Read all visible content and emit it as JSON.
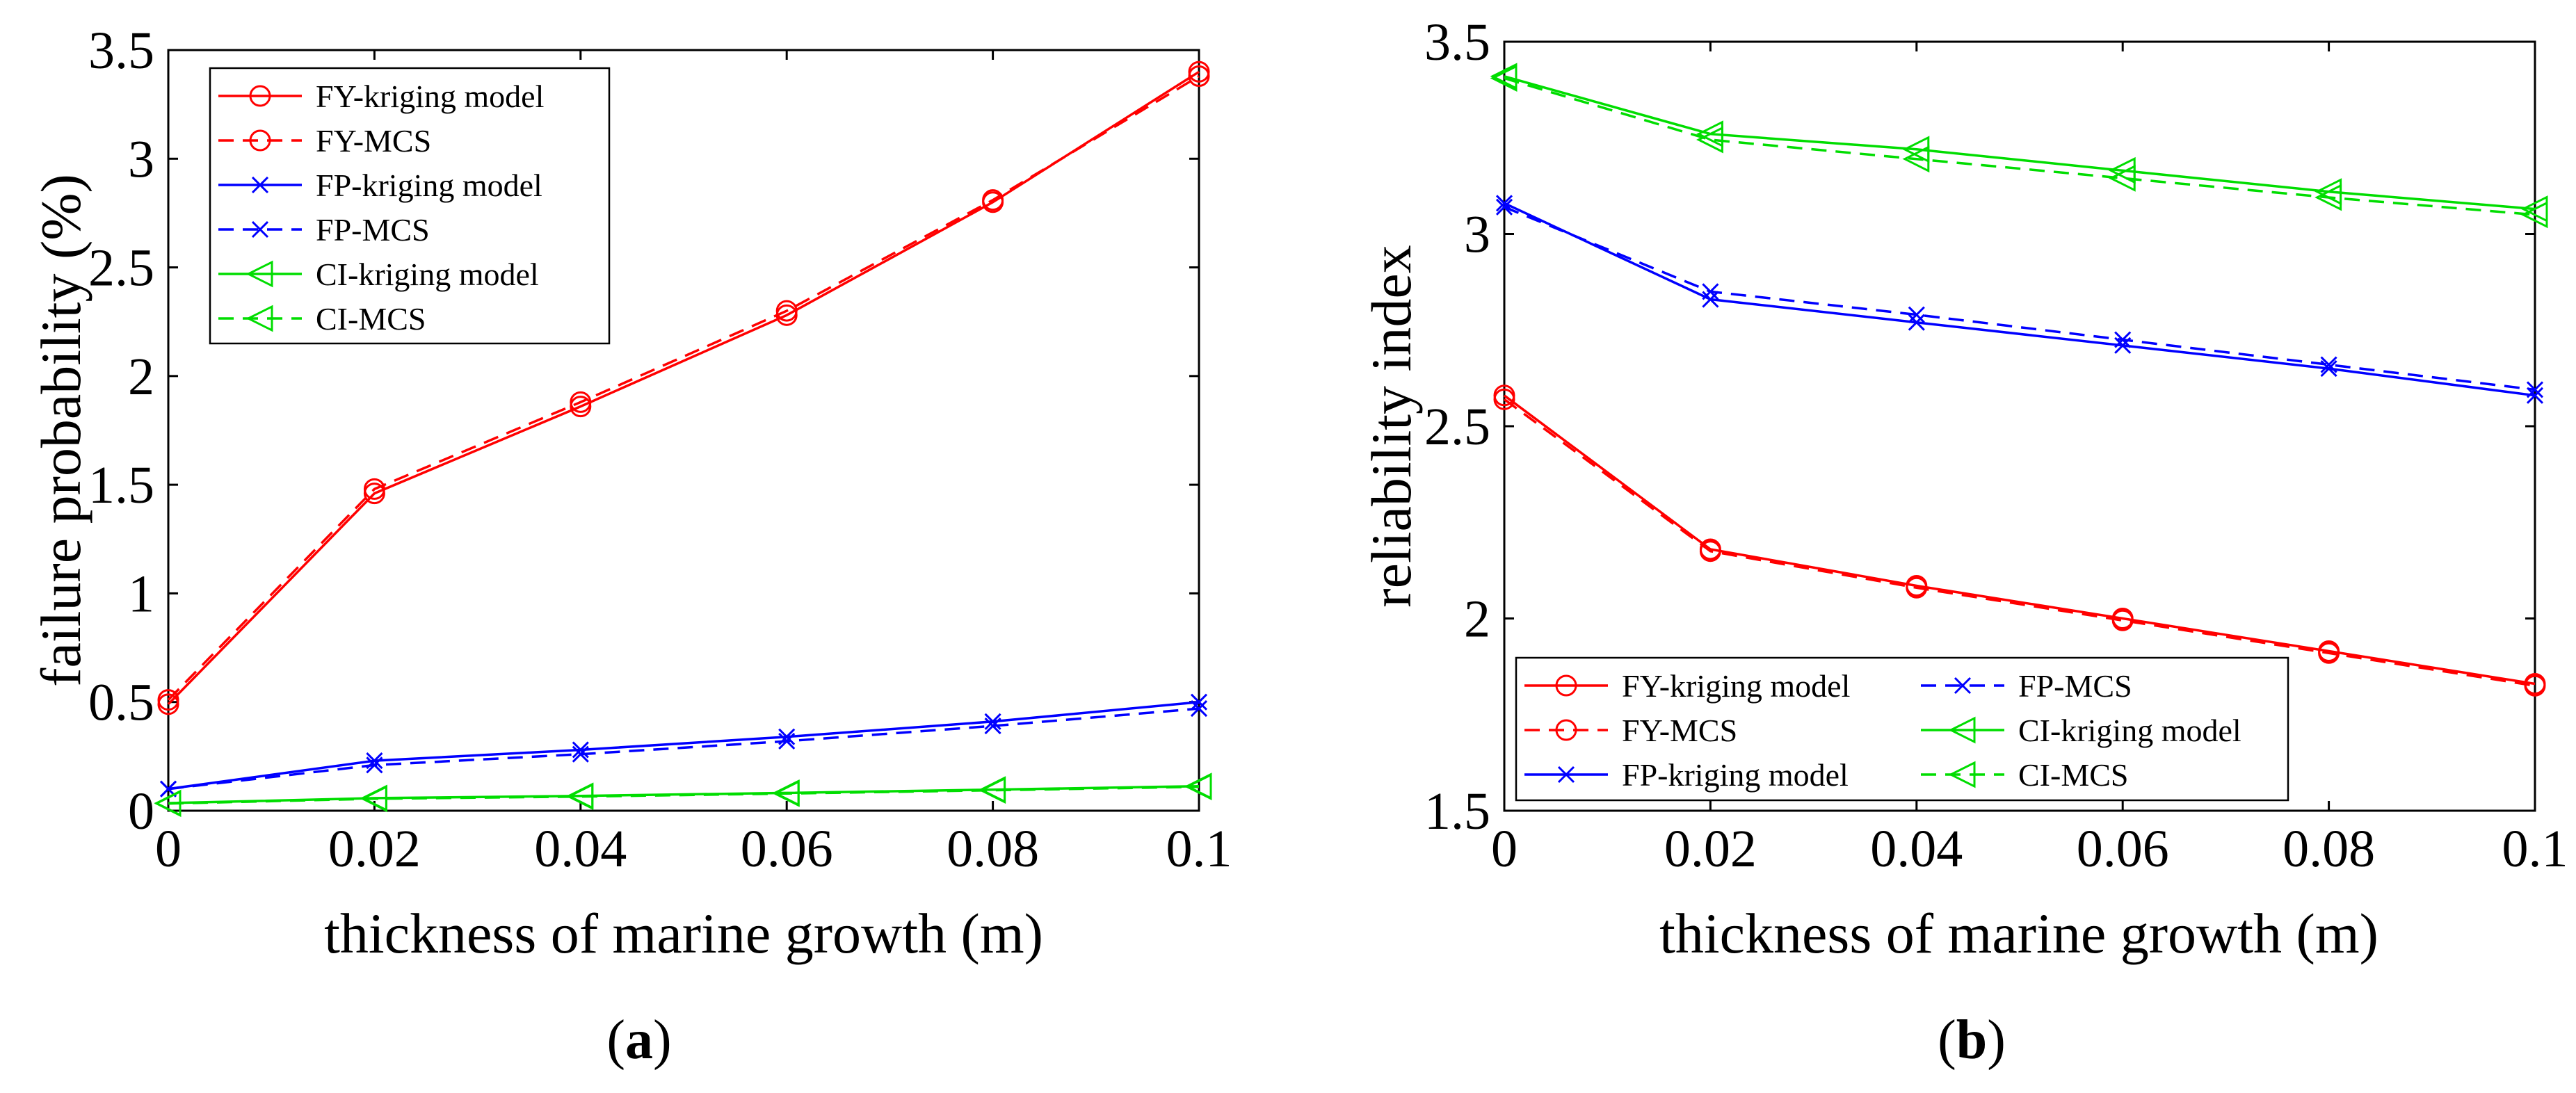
{
  "colors": {
    "fy": "#ff0000",
    "fp": "#0000ff",
    "ci": "#00dd00",
    "axis": "#000000",
    "background": "#ffffff"
  },
  "chart_data": [
    {
      "type": "line",
      "panel": "a",
      "caption": {
        "open": "(",
        "letter": "a",
        "close": ")"
      },
      "xlabel": "thickness of marine growth (m)",
      "ylabel": "failure probability (%)",
      "x": [
        0,
        0.02,
        0.04,
        0.06,
        0.08,
        0.1
      ],
      "xticks": [
        0,
        0.02,
        0.04,
        0.06,
        0.08,
        0.1
      ],
      "xtick_labels": [
        "0",
        "0.02",
        "0.04",
        "0.06",
        "0.08",
        "0.1"
      ],
      "yticks": [
        0,
        0.5,
        1,
        1.5,
        2,
        2.5,
        3,
        3.5
      ],
      "ytick_labels": [
        "0",
        "0.5",
        "1",
        "1.5",
        "2",
        "2.5",
        "3",
        "3.5"
      ],
      "xlim": [
        0,
        0.1
      ],
      "ylim": [
        0,
        3.5
      ],
      "grid": false,
      "legend_position": "top-left",
      "legend_columns": 1,
      "series": [
        {
          "name": "FY-kriging model",
          "color": "fy",
          "dash": "solid",
          "marker": "circle",
          "values": [
            0.49,
            1.46,
            1.86,
            2.28,
            2.8,
            3.4
          ]
        },
        {
          "name": "FY-MCS",
          "color": "fy",
          "dash": "dashed",
          "marker": "circle",
          "values": [
            0.51,
            1.48,
            1.88,
            2.3,
            2.81,
            3.38
          ]
        },
        {
          "name": "FP-kriging model",
          "color": "fp",
          "dash": "solid",
          "marker": "x",
          "values": [
            0.1,
            0.23,
            0.28,
            0.34,
            0.41,
            0.5
          ]
        },
        {
          "name": "FP-MCS",
          "color": "fp",
          "dash": "dashed",
          "marker": "x",
          "values": [
            0.1,
            0.21,
            0.26,
            0.32,
            0.39,
            0.47
          ]
        },
        {
          "name": "CI-kriging model",
          "color": "ci",
          "dash": "solid",
          "marker": "triangle-left",
          "values": [
            0.035,
            0.058,
            0.068,
            0.082,
            0.097,
            0.113
          ]
        },
        {
          "name": "CI-MCS",
          "color": "ci",
          "dash": "dashed",
          "marker": "triangle-left",
          "values": [
            0.033,
            0.055,
            0.065,
            0.079,
            0.094,
            0.11
          ]
        }
      ]
    },
    {
      "type": "line",
      "panel": "b",
      "caption": {
        "open": "(",
        "letter": "b",
        "close": ")"
      },
      "xlabel": "thickness of marine growth (m)",
      "ylabel": "reliability index",
      "x": [
        0,
        0.02,
        0.04,
        0.06,
        0.08,
        0.1
      ],
      "xticks": [
        0,
        0.02,
        0.04,
        0.06,
        0.08,
        0.1
      ],
      "xtick_labels": [
        "0",
        "0.02",
        "0.04",
        "0.06",
        "0.08",
        "0.1"
      ],
      "yticks": [
        1.5,
        2,
        2.5,
        3,
        3.5
      ],
      "ytick_labels": [
        "1.5",
        "2",
        "2.5",
        "3",
        "3.5"
      ],
      "xlim": [
        0,
        0.1
      ],
      "ylim": [
        1.5,
        3.5
      ],
      "grid": false,
      "legend_position": "bottom-left",
      "legend_columns": 2,
      "series": [
        {
          "name": "FY-kriging model",
          "color": "fy",
          "dash": "solid",
          "marker": "circle",
          "values": [
            2.58,
            2.18,
            2.085,
            2.0,
            1.915,
            1.83
          ]
        },
        {
          "name": "FY-MCS",
          "color": "fy",
          "dash": "dashed",
          "marker": "circle",
          "values": [
            2.57,
            2.175,
            2.08,
            1.995,
            1.91,
            1.825
          ]
        },
        {
          "name": "FP-kriging model",
          "color": "fp",
          "dash": "solid",
          "marker": "x",
          "values": [
            3.08,
            2.83,
            2.77,
            2.71,
            2.65,
            2.58
          ]
        },
        {
          "name": "FP-MCS",
          "color": "fp",
          "dash": "dashed",
          "marker": "x",
          "values": [
            3.07,
            2.85,
            2.79,
            2.725,
            2.66,
            2.595
          ]
        },
        {
          "name": "CI-kriging model",
          "color": "ci",
          "dash": "solid",
          "marker": "triangle-left",
          "values": [
            3.41,
            3.26,
            3.22,
            3.165,
            3.11,
            3.065
          ]
        },
        {
          "name": "CI-MCS",
          "color": "ci",
          "dash": "dashed",
          "marker": "triangle-left",
          "values": [
            3.405,
            3.245,
            3.195,
            3.145,
            3.095,
            3.05
          ]
        }
      ]
    }
  ]
}
